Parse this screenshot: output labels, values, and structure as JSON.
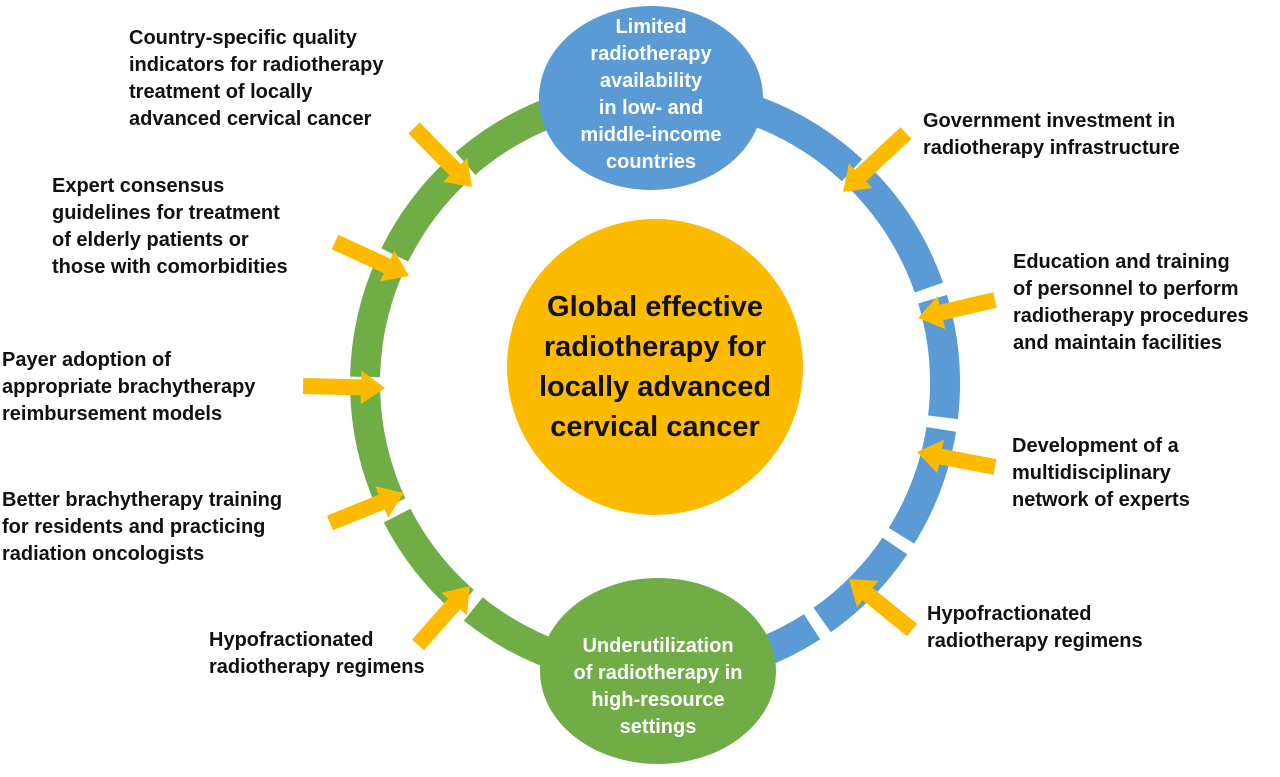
{
  "center": {
    "lines": [
      "Global effective",
      "radiotherapy for",
      "locally advanced",
      "cervical cancer"
    ]
  },
  "top_bubble": {
    "lines": [
      "Limited",
      "radiotherapy",
      "availability",
      "in low- and",
      "middle-income",
      "countries"
    ]
  },
  "bottom_bubble": {
    "lines": [
      "Underutilization",
      "of radiotherapy in",
      "high-resource",
      "settings"
    ]
  },
  "left_factors": [
    {
      "lines": [
        "Country-specific quality",
        "indicators for radiotherapy",
        "treatment of locally",
        "advanced cervical cancer"
      ]
    },
    {
      "lines": [
        "Expert consensus",
        "guidelines for treatment",
        "of elderly patients or",
        "those with comorbidities"
      ]
    },
    {
      "lines": [
        "Payer adoption of",
        "appropriate brachytherapy",
        "reimbursement models"
      ]
    },
    {
      "lines": [
        "Better brachytherapy training",
        "for residents and practicing",
        "radiation oncologists"
      ]
    },
    {
      "lines": [
        "Hypofractionated",
        "radiotherapy regimens"
      ]
    }
  ],
  "right_factors": [
    {
      "lines": [
        "Government investment in",
        "radiotherapy infrastructure"
      ]
    },
    {
      "lines": [
        "Education and training",
        "of personnel to perform",
        "radiotherapy procedures",
        "and maintain facilities"
      ]
    },
    {
      "lines": [
        "Development of a",
        "multidisciplinary",
        "network of experts"
      ]
    },
    {
      "lines": [
        "Hypofractionated",
        "radiotherapy regimens"
      ]
    }
  ],
  "colors": {
    "center_fill": "#FDBB00",
    "blue": "#5B9BD5",
    "green": "#70AD47",
    "arrow": "#FDBB00",
    "text": "#111111"
  }
}
